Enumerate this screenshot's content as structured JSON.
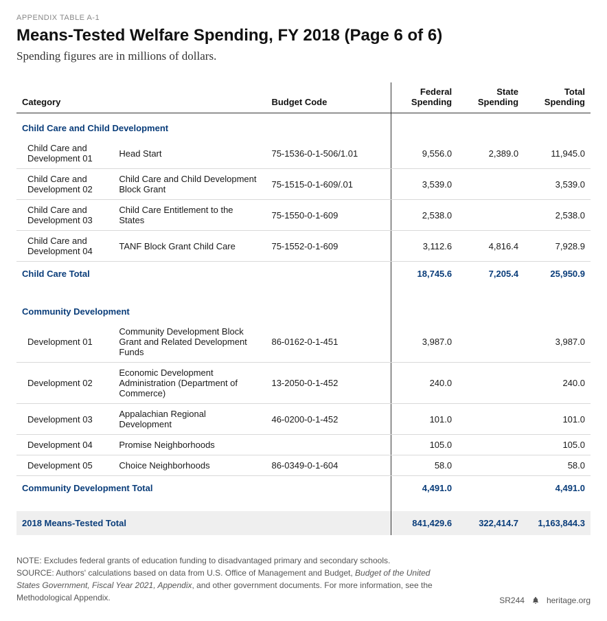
{
  "appendix_label": "APPENDIX TABLE A-1",
  "title": "Means-Tested Welfare Spending, FY 2018 (Page 6 of 6)",
  "subtitle": "Spending figures are in millions of dollars.",
  "columns": {
    "category": "Category",
    "budget_code": "Budget Code",
    "federal": "Federal Spending",
    "state": "State Spending",
    "total": "Total Spending"
  },
  "sections": [
    {
      "name": "Child Care and Child Development",
      "rows": [
        {
          "cat": "Child Care and Development 01",
          "desc": "Head Start",
          "code": "75-1536-0-1-506/1.01",
          "fed": "9,556.0",
          "state": "2,389.0",
          "total": "11,945.0"
        },
        {
          "cat": "Child Care and Development 02",
          "desc": "Child Care and Child Development Block Grant",
          "code": "75-1515-0-1-609/.01",
          "fed": "3,539.0",
          "state": "",
          "total": "3,539.0"
        },
        {
          "cat": "Child Care and Development 03",
          "desc": "Child Care Entitlement to the States",
          "code": "75-1550-0-1-609",
          "fed": "2,538.0",
          "state": "",
          "total": "2,538.0"
        },
        {
          "cat": "Child Care and Development 04",
          "desc": "TANF Block Grant Child Care",
          "code": "75-1552-0-1-609",
          "fed": "3,112.6",
          "state": "4,816.4",
          "total": "7,928.9"
        }
      ],
      "total_label": "Child Care Total",
      "total": {
        "fed": "18,745.6",
        "state": "7,205.4",
        "total": "25,950.9"
      }
    },
    {
      "name": "Community Development",
      "rows": [
        {
          "cat": "Development 01",
          "desc": "Community Development Block Grant and Related Development Funds",
          "code": "86-0162-0-1-451",
          "fed": "3,987.0",
          "state": "",
          "total": "3,987.0"
        },
        {
          "cat": "Development 02",
          "desc": "Economic Development Administration (Department of Commerce)",
          "code": "13-2050-0-1-452",
          "fed": "240.0",
          "state": "",
          "total": "240.0"
        },
        {
          "cat": "Development 03",
          "desc": "Appalachian Regional Development",
          "code": "46-0200-0-1-452",
          "fed": "101.0",
          "state": "",
          "total": "101.0"
        },
        {
          "cat": "Development 04",
          "desc": "Promise Neighborhoods",
          "code": "",
          "fed": "105.0",
          "state": "",
          "total": "105.0"
        },
        {
          "cat": "Development 05",
          "desc": "Choice Neighborhoods",
          "code": "86-0349-0-1-604",
          "fed": "58.0",
          "state": "",
          "total": "58.0"
        }
      ],
      "total_label": "Community Development Total",
      "total": {
        "fed": "4,491.0",
        "state": "",
        "total": "4,491.0"
      }
    }
  ],
  "grand_total": {
    "label": "2018 Means-Tested Total",
    "fed": "841,429.6",
    "state": "322,414.7",
    "total": "1,163,844.3"
  },
  "note_label": "NOTE:",
  "note_text": "Excludes federal grants of education funding to disadvantaged primary and secondary schools.",
  "source_label": "SOURCE:",
  "source_text_1": "Authors' calculations based on data from U.S. Office of Management and Budget, ",
  "source_italic": "Budget of the United States Government, Fiscal Year 2021, Appendix",
  "source_text_2": ", and other government documents. For more information, see the Methodological Appendix.",
  "footer_code": "SR244",
  "footer_site": "heritage.org",
  "colors": {
    "heading_blue": "#0a3d7a",
    "border_dark": "#333333",
    "border_light": "#d9d9d9",
    "shade": "#efefef"
  }
}
